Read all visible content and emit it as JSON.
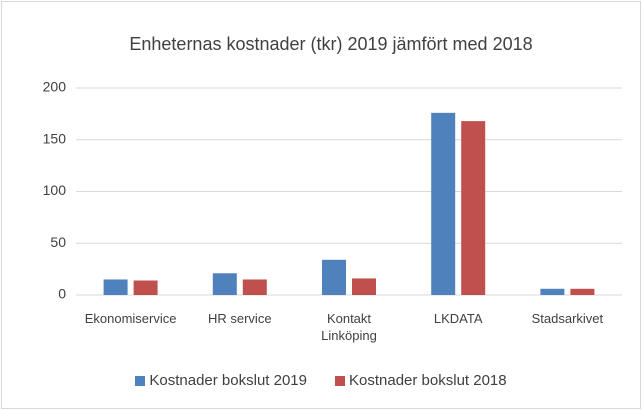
{
  "chart_data": {
    "type": "bar",
    "title": "Enheternas kostnader (tkr) 2019 jämfört med 2018",
    "categories": [
      "Ekonomiservice",
      "HR service",
      "Kontakt Linköping",
      "LKDATA",
      "Stadsarkivet"
    ],
    "series": [
      {
        "name": "Kostnader bokslut 2019",
        "color": "#4f81bd",
        "values": [
          15,
          21,
          34,
          176,
          6
        ]
      },
      {
        "name": "Kostnader bokslut 2018",
        "color": "#c0504d",
        "values": [
          14,
          15,
          16,
          168,
          6
        ]
      }
    ],
    "ylim": [
      0,
      200
    ],
    "yticks": [
      0,
      50,
      100,
      150,
      200
    ],
    "grid": true,
    "legend": "bottom"
  }
}
